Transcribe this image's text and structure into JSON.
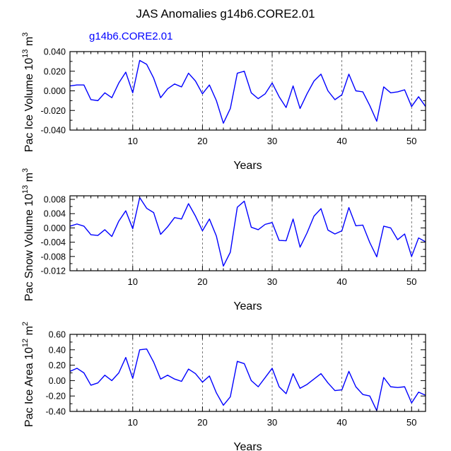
{
  "title": "JAS Anomalies g14b6.CORE2.01",
  "series_label": "g14b6.CORE2.01",
  "line_color": "#0000ff",
  "chart_data": [
    {
      "type": "line",
      "ylabel_prefix": "Pac Ice Volume 10",
      "ylabel_exp": "13",
      "ylabel_unit": " m",
      "ylabel_unit_exp": "3",
      "xlabel": "Years",
      "xlim": [
        1,
        52
      ],
      "ylim": [
        -0.04,
        0.04
      ],
      "yticks": [
        -0.04,
        -0.02,
        0.0,
        0.02,
        0.04
      ],
      "ytick_labels": [
        "-0.040",
        "-0.020",
        "0.000",
        "0.020",
        "0.040"
      ],
      "xticks": [
        10,
        20,
        30,
        40,
        50
      ],
      "xtick_labels": [
        "10",
        "20",
        "30",
        "40",
        "50"
      ],
      "dashed_years": [
        10,
        20,
        30,
        40,
        50
      ],
      "x": [
        1,
        2,
        3,
        4,
        5,
        6,
        7,
        8,
        9,
        10,
        11,
        12,
        13,
        14,
        15,
        16,
        17,
        18,
        19,
        20,
        21,
        22,
        23,
        24,
        25,
        26,
        27,
        28,
        29,
        30,
        31,
        32,
        33,
        34,
        35,
        36,
        37,
        38,
        39,
        40,
        41,
        42,
        43,
        44,
        45,
        46,
        47,
        48,
        49,
        50,
        51,
        52
      ],
      "values": [
        0.005,
        0.006,
        0.006,
        -0.009,
        -0.01,
        -0.002,
        -0.007,
        0.008,
        0.019,
        -0.002,
        0.031,
        0.027,
        0.013,
        -0.007,
        0.002,
        0.007,
        0.004,
        0.018,
        0.01,
        -0.003,
        0.006,
        -0.01,
        -0.033,
        -0.018,
        0.018,
        0.02,
        -0.002,
        -0.008,
        -0.003,
        0.008,
        -0.006,
        -0.017,
        0.005,
        -0.018,
        -0.003,
        0.01,
        0.017,
        0.0,
        -0.009,
        -0.004,
        0.017,
        0.0,
        -0.001,
        -0.015,
        -0.031,
        0.004,
        -0.002,
        -0.001,
        0.001,
        -0.016,
        -0.006,
        -0.016
      ]
    },
    {
      "type": "line",
      "ylabel_prefix": "Pac Snow Volume 10",
      "ylabel_exp": "13",
      "ylabel_unit": " m",
      "ylabel_unit_exp": "3",
      "xlabel": "Years",
      "xlim": [
        1,
        52
      ],
      "ylim": [
        -0.012,
        0.009
      ],
      "yticks": [
        -0.012,
        -0.008,
        -0.004,
        0.0,
        0.004,
        0.008
      ],
      "ytick_labels": [
        "-0.012",
        "-0.008",
        "-0.004",
        "0.000",
        "0.004",
        "0.008"
      ],
      "xticks": [
        10,
        20,
        30,
        40,
        50
      ],
      "xtick_labels": [
        "10",
        "20",
        "30",
        "40",
        "50"
      ],
      "dashed_years": [
        10,
        20,
        30,
        40,
        50
      ],
      "x": [
        1,
        2,
        3,
        4,
        5,
        6,
        7,
        8,
        9,
        10,
        11,
        12,
        13,
        14,
        15,
        16,
        17,
        18,
        19,
        20,
        21,
        22,
        23,
        24,
        25,
        26,
        27,
        28,
        29,
        30,
        31,
        32,
        33,
        34,
        35,
        36,
        37,
        38,
        39,
        40,
        41,
        42,
        43,
        44,
        45,
        46,
        47,
        48,
        49,
        50,
        51,
        52
      ],
      "values": [
        0.0005,
        0.0011,
        0.0005,
        -0.0019,
        -0.0021,
        -0.0005,
        -0.0024,
        0.0019,
        0.0048,
        -0.0002,
        0.0085,
        0.0055,
        0.0043,
        -0.0018,
        0.0003,
        0.0029,
        0.0025,
        0.0068,
        0.0033,
        -0.0008,
        0.0025,
        -0.0023,
        -0.0107,
        -0.0068,
        0.0058,
        0.0075,
        0.0002,
        -0.0005,
        0.001,
        0.0015,
        -0.0035,
        -0.0036,
        0.0025,
        -0.0054,
        -0.0014,
        0.0033,
        0.0054,
        -0.0006,
        -0.0017,
        -0.0008,
        0.0057,
        0.0006,
        0.0008,
        -0.0041,
        -0.0081,
        0.0005,
        0.0,
        -0.0033,
        -0.0017,
        -0.008,
        -0.0028,
        -0.0039
      ]
    },
    {
      "type": "line",
      "ylabel_prefix": "Pac Ice Area 10",
      "ylabel_exp": "12",
      "ylabel_unit": " m",
      "ylabel_unit_exp": "2",
      "xlabel": "Years",
      "xlim": [
        1,
        52
      ],
      "ylim": [
        -0.4,
        0.6
      ],
      "yticks": [
        -0.4,
        -0.2,
        0.0,
        0.2,
        0.4,
        0.6
      ],
      "ytick_labels": [
        "-0.40",
        "-0.20",
        "0.00",
        "0.20",
        "0.40",
        "0.60"
      ],
      "xticks": [
        10,
        20,
        30,
        40,
        50
      ],
      "xtick_labels": [
        "10",
        "20",
        "30",
        "40",
        "50"
      ],
      "dashed_years": [
        10,
        20,
        30,
        40,
        50
      ],
      "x": [
        1,
        2,
        3,
        4,
        5,
        6,
        7,
        8,
        9,
        10,
        11,
        12,
        13,
        14,
        15,
        16,
        17,
        18,
        19,
        20,
        21,
        22,
        23,
        24,
        25,
        26,
        27,
        28,
        29,
        30,
        31,
        32,
        33,
        34,
        35,
        36,
        37,
        38,
        39,
        40,
        41,
        42,
        43,
        44,
        45,
        46,
        47,
        48,
        49,
        50,
        51,
        52
      ],
      "values": [
        0.12,
        0.16,
        0.1,
        -0.06,
        -0.03,
        0.07,
        0.0,
        0.1,
        0.3,
        0.03,
        0.4,
        0.41,
        0.24,
        0.02,
        0.07,
        0.02,
        -0.01,
        0.15,
        0.09,
        -0.02,
        0.06,
        -0.16,
        -0.32,
        -0.21,
        0.25,
        0.22,
        0.0,
        -0.08,
        0.04,
        0.16,
        -0.08,
        -0.17,
        0.09,
        -0.1,
        -0.05,
        0.02,
        0.09,
        -0.03,
        -0.13,
        -0.12,
        0.12,
        -0.08,
        -0.18,
        -0.2,
        -0.39,
        0.04,
        -0.08,
        -0.09,
        -0.08,
        -0.29,
        -0.15,
        -0.19
      ]
    }
  ]
}
